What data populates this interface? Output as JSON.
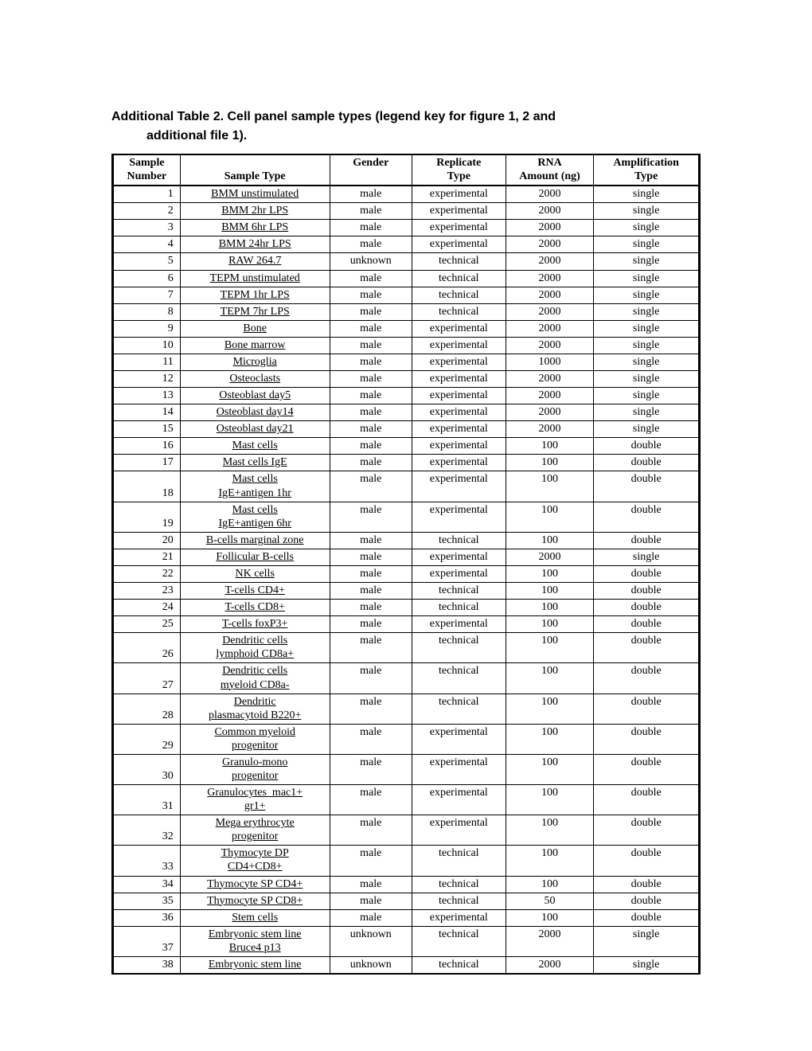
{
  "caption_line1": "Additional Table 2. Cell panel sample types (legend key for figure 1, 2 and",
  "caption_line2": "additional file 1).",
  "columns": [
    {
      "line1": "Sample",
      "line2": "Number"
    },
    {
      "line1": "",
      "line2": "Sample Type"
    },
    {
      "line1": "Gender",
      "line2": ""
    },
    {
      "line1": "Replicate",
      "line2": "Type"
    },
    {
      "line1": "RNA",
      "line2": "Amount (ng)"
    },
    {
      "line1": "Amplification",
      "line2": "Type"
    }
  ],
  "rows": [
    {
      "n": "1",
      "t": "BMM unstimulated",
      "g": "male",
      "r": "experimental",
      "a": "2000",
      "amp": "single"
    },
    {
      "n": "2",
      "t": "BMM 2hr LPS",
      "g": "male",
      "r": "experimental",
      "a": "2000",
      "amp": "single"
    },
    {
      "n": "3",
      "t": "BMM 6hr LPS",
      "g": "male",
      "r": "experimental",
      "a": "2000",
      "amp": "single"
    },
    {
      "n": "4",
      "t": "BMM 24hr LPS",
      "g": "male",
      "r": "experimental",
      "a": "2000",
      "amp": "single"
    },
    {
      "n": "5",
      "t": "RAW 264.7",
      "g": "unknown",
      "r": "technical",
      "a": "2000",
      "amp": "single"
    },
    {
      "n": "6",
      "t": "TEPM unstimulated",
      "g": "male",
      "r": "technical",
      "a": "2000",
      "amp": "single"
    },
    {
      "n": "7",
      "t": "TEPM 1hr LPS",
      "g": "male",
      "r": "technical",
      "a": "2000",
      "amp": "single"
    },
    {
      "n": "8",
      "t": "TEPM 7hr LPS",
      "g": "male",
      "r": "technical",
      "a": "2000",
      "amp": "single"
    },
    {
      "n": "9",
      "t": "Bone",
      "g": "male",
      "r": "experimental",
      "a": "2000",
      "amp": "single"
    },
    {
      "n": "10",
      "t": "Bone marrow",
      "g": "male",
      "r": "experimental",
      "a": "2000",
      "amp": "single"
    },
    {
      "n": "11",
      "t": "Microglia",
      "g": "male",
      "r": "experimental",
      "a": "1000",
      "amp": "single"
    },
    {
      "n": "12",
      "t": "Osteoclasts",
      "g": "male",
      "r": "experimental",
      "a": "2000",
      "amp": "single"
    },
    {
      "n": "13",
      "t": "Osteoblast day5",
      "g": "male",
      "r": "experimental",
      "a": "2000",
      "amp": "single"
    },
    {
      "n": "14",
      "t": "Osteoblast day14",
      "g": "male",
      "r": "experimental",
      "a": "2000",
      "amp": "single"
    },
    {
      "n": "15",
      "t": "Osteoblast day21",
      "g": "male",
      "r": "experimental",
      "a": "2000",
      "amp": "single"
    },
    {
      "n": "16",
      "t": "Mast cells",
      "g": "male",
      "r": "experimental",
      "a": "100",
      "amp": "double"
    },
    {
      "n": "17",
      "t": "Mast cells IgE",
      "g": "male",
      "r": "experimental",
      "a": "100",
      "amp": "double"
    },
    {
      "n": "18",
      "t": "Mast cells\nIgE+antigen 1hr",
      "g": "male",
      "r": "experimental",
      "a": "100",
      "amp": "double"
    },
    {
      "n": "19",
      "t": "Mast cells\nIgE+antigen 6hr",
      "g": "male",
      "r": "experimental",
      "a": "100",
      "amp": "double"
    },
    {
      "n": "20",
      "t": "B-cells marginal zone",
      "g": "male",
      "r": "technical",
      "a": "100",
      "amp": "double"
    },
    {
      "n": "21",
      "t": "Follicular B-cells",
      "g": "male",
      "r": "experimental",
      "a": "2000",
      "amp": "single"
    },
    {
      "n": "22",
      "t": "NK cells",
      "g": "male",
      "r": "experimental",
      "a": "100",
      "amp": "double"
    },
    {
      "n": "23",
      "t": "T-cells CD4+",
      "g": "male",
      "r": "technical",
      "a": "100",
      "amp": "double"
    },
    {
      "n": "24",
      "t": "T-cells CD8+",
      "g": "male",
      "r": "technical",
      "a": "100",
      "amp": "double"
    },
    {
      "n": "25",
      "t": "T-cells foxP3+",
      "g": "male",
      "r": "experimental",
      "a": "100",
      "amp": "double"
    },
    {
      "n": "26",
      "t": "Dendritic cells\nlymphoid CD8a+",
      "g": "male",
      "r": "technical",
      "a": "100",
      "amp": "double"
    },
    {
      "n": "27",
      "t": "Dendritic cells\nmyeloid CD8a-",
      "g": "male",
      "r": "technical",
      "a": "100",
      "amp": "double"
    },
    {
      "n": "28",
      "t": "Dendritic\nplasmacytoid B220+",
      "g": "male",
      "r": "technical",
      "a": "100",
      "amp": "double"
    },
    {
      "n": "29",
      "t": "Common myeloid\nprogenitor",
      "g": "male",
      "r": "experimental",
      "a": "100",
      "amp": "double"
    },
    {
      "n": "30",
      "t": "Granulo-mono\nprogenitor",
      "g": "male",
      "r": "experimental",
      "a": "100",
      "amp": "double"
    },
    {
      "n": "31",
      "t": "Granulocytes_mac1+\ngr1+",
      "g": "male",
      "r": "experimental",
      "a": "100",
      "amp": "double"
    },
    {
      "n": "32",
      "t": "Mega erythrocyte\nprogenitor",
      "g": "male",
      "r": "experimental",
      "a": "100",
      "amp": "double"
    },
    {
      "n": "33",
      "t": "Thymocyte DP\nCD4+CD8+",
      "g": "male",
      "r": "technical",
      "a": "100",
      "amp": "double"
    },
    {
      "n": "34",
      "t": "Thymocyte SP CD4+",
      "g": "male",
      "r": "technical",
      "a": "100",
      "amp": "double"
    },
    {
      "n": "35",
      "t": "Thymocyte SP CD8+",
      "g": "male",
      "r": "technical",
      "a": "50",
      "amp": "double"
    },
    {
      "n": "36",
      "t": "Stem cells",
      "g": "male",
      "r": "experimental",
      "a": "100",
      "amp": "double"
    },
    {
      "n": "37",
      "t": "Embryonic stem line\nBruce4 p13",
      "g": "unknown",
      "r": "technical",
      "a": "2000",
      "amp": "single"
    },
    {
      "n": "38",
      "t": "Embryonic stem line",
      "g": "unknown",
      "r": "technical",
      "a": "2000",
      "amp": "single"
    }
  ]
}
